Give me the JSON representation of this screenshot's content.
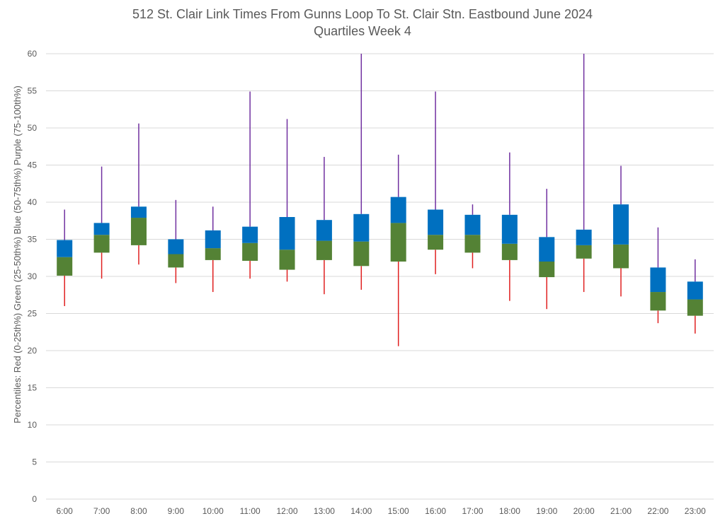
{
  "chart_data": {
    "type": "box",
    "title": "512 St. Clair Link Times From Gunns Loop To St. Clair Stn. Eastbound June 2024",
    "subtitle": "Quartiles Week 4",
    "xlabel": "",
    "ylabel": "Percentiles:  Red (0-25th%)  Green (25-50th%)  Blue (50-75th%)  Purple (75-100th%)",
    "ylim": [
      0,
      60
    ],
    "yticks": [
      0,
      5,
      10,
      15,
      20,
      25,
      30,
      35,
      40,
      45,
      50,
      55,
      60
    ],
    "grid": true,
    "legend": "none",
    "colors": {
      "min_to_q1": "#e02020",
      "q1_to_median": "#548235",
      "median_to_q3": "#0070c0",
      "q3_to_max": "#7030a0",
      "grid": "#d9d9d9",
      "text": "#595959"
    },
    "categories": [
      "6:00",
      "7:00",
      "8:00",
      "9:00",
      "10:00",
      "11:00",
      "12:00",
      "13:00",
      "14:00",
      "15:00",
      "16:00",
      "17:00",
      "18:00",
      "19:00",
      "20:00",
      "21:00",
      "22:00",
      "23:00"
    ],
    "series": [
      {
        "name": "min",
        "values": [
          26.0,
          29.7,
          31.6,
          29.1,
          27.9,
          29.7,
          29.3,
          27.6,
          28.2,
          20.6,
          30.3,
          31.1,
          26.7,
          25.6,
          27.9,
          27.3,
          23.7,
          22.3
        ]
      },
      {
        "name": "q1",
        "values": [
          30.1,
          33.2,
          34.2,
          31.2,
          32.2,
          32.1,
          30.9,
          32.2,
          31.4,
          32.0,
          33.6,
          33.2,
          32.2,
          29.9,
          32.4,
          31.1,
          25.4,
          24.7
        ]
      },
      {
        "name": "median",
        "values": [
          32.6,
          35.6,
          37.9,
          33.0,
          33.8,
          34.5,
          33.6,
          34.8,
          34.7,
          37.2,
          35.6,
          35.6,
          34.4,
          32.0,
          34.2,
          34.3,
          27.9,
          26.9
        ]
      },
      {
        "name": "q3",
        "values": [
          34.9,
          37.2,
          39.4,
          35.0,
          36.2,
          36.7,
          38.0,
          37.6,
          38.4,
          40.7,
          39.0,
          38.3,
          38.3,
          35.3,
          36.3,
          39.7,
          31.2,
          29.3
        ]
      },
      {
        "name": "max",
        "values": [
          39.0,
          44.8,
          50.6,
          40.3,
          39.4,
          54.9,
          51.2,
          46.1,
          60.0,
          46.4,
          54.9,
          39.7,
          46.7,
          41.8,
          60.0,
          44.9,
          36.6,
          32.3
        ]
      }
    ]
  }
}
